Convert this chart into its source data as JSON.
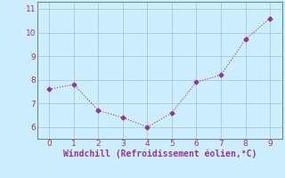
{
  "x": [
    0,
    1,
    2,
    3,
    4,
    5,
    6,
    7,
    8,
    9
  ],
  "y": [
    7.6,
    7.8,
    6.7,
    6.4,
    6.0,
    6.6,
    7.9,
    8.2,
    9.7,
    10.6
  ],
  "line_color": "#993399",
  "marker_style": "D",
  "marker_size": 2.5,
  "line_width": 0.8,
  "line_style": "dotted",
  "xlabel": "Windchill (Refroidissement éolien,°C)",
  "xlabel_fontsize": 7.0,
  "xlabel_color": "#993399",
  "background_color": "#cceeff",
  "grid_color": "#aacccc",
  "tick_label_color": "#993399",
  "spine_color": "#778888",
  "xlim": [
    -0.5,
    9.5
  ],
  "ylim": [
    5.5,
    11.3
  ],
  "xticks": [
    0,
    1,
    2,
    3,
    4,
    5,
    6,
    7,
    8,
    9
  ],
  "yticks": [
    6,
    7,
    8,
    9,
    10,
    11
  ]
}
